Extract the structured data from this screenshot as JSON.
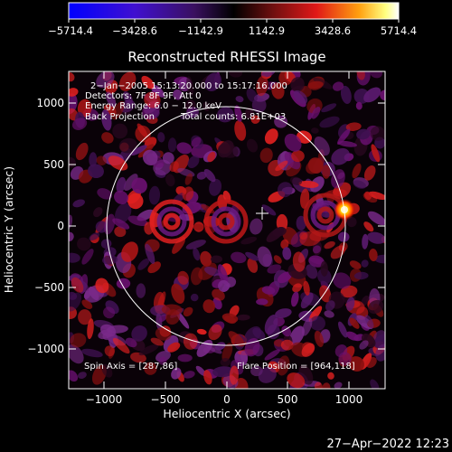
{
  "colorbar": {
    "tick_labels": [
      "−5714.4",
      "−3428.6",
      "−1142.9",
      "1142.9",
      "3428.6",
      "5714.4"
    ],
    "min": -5714.4,
    "max": 5714.4,
    "colormap": "blue-purple-black-red-yellow-white"
  },
  "plot": {
    "title": "Reconstructed RHESSI Image",
    "xlabel": "Heliocentric X (arcsec)",
    "ylabel": "Heliocentric Y (arcsec)",
    "xlim": [
      -1300,
      1300
    ],
    "ylim": [
      -1300,
      1300
    ],
    "x_ticks": [
      "−1000",
      "−500",
      "0",
      "500",
      "1000"
    ],
    "y_ticks": [
      "1000",
      "500",
      "0",
      "−500",
      "−1000"
    ],
    "solar_disk_radius_arcsec": 975,
    "center_marker_arcsec": [
      280,
      100
    ],
    "flare_source_arcsec": [
      964,
      118
    ],
    "annotation": {
      "line1": "2−Jan−2005 15:13:20.000 to 15:17:16.000",
      "line2": "Detectors: 7F 8F 9F, Att 0",
      "line3": "Energy Range: 6.0 − 12.0 keV",
      "line4a": "Back Projection",
      "line4b": "Total counts: 6.81E+03"
    },
    "spin_axis": "Spin Axis = [287,86]",
    "flare_position": "Flare Position = [964,118]"
  },
  "footer": {
    "timestamp": "27−Apr−2022 12:23"
  },
  "colors": {
    "background": "#000000",
    "foreground": "#ffffff"
  }
}
